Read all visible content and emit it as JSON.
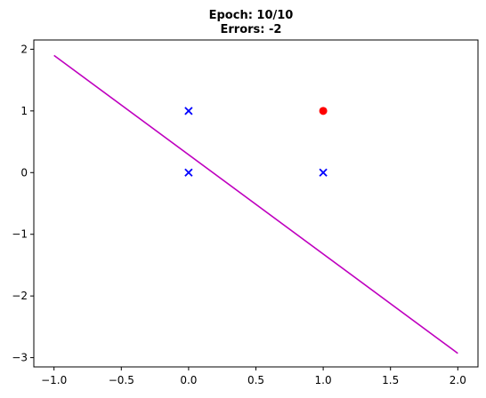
{
  "chart_data": {
    "type": "scatter",
    "title_lines": [
      "Epoch: 10/10",
      "Errors: -2"
    ],
    "xlim": [
      -1.15,
      2.15
    ],
    "ylim": [
      -3.15,
      2.15
    ],
    "x_ticks": [
      -1.0,
      -0.5,
      0.0,
      0.5,
      1.0,
      1.5,
      2.0
    ],
    "x_tick_labels": [
      "−1.0",
      "−0.5",
      "0.0",
      "0.5",
      "1.0",
      "1.5",
      "2.0"
    ],
    "y_ticks": [
      2,
      1,
      0,
      -1,
      -2,
      -3
    ],
    "y_tick_labels": [
      "2",
      "1",
      "0",
      "−1",
      "−2",
      "−3"
    ],
    "grid": false,
    "series": [
      {
        "marker": "x",
        "color": "#0000ff",
        "points": [
          [
            0,
            1
          ],
          [
            0,
            0
          ],
          [
            1,
            0
          ]
        ]
      },
      {
        "marker": "circle",
        "color": "#ff0000",
        "points": [
          [
            1,
            1
          ]
        ]
      }
    ],
    "decision_line": {
      "color": "#bf00bf",
      "points": [
        [
          -1.0,
          1.9
        ],
        [
          2.0,
          -2.93
        ]
      ]
    }
  }
}
